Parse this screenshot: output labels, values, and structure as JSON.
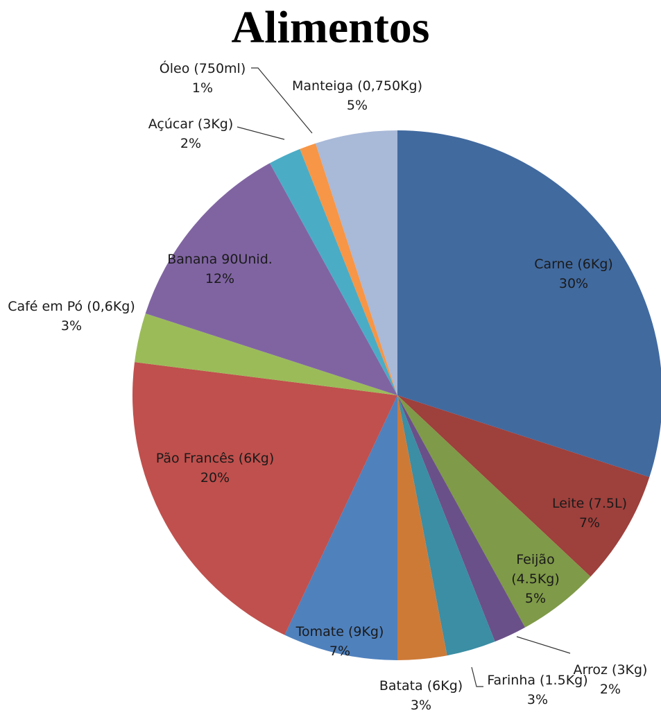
{
  "chart_data": {
    "type": "pie",
    "title": "Alimentos",
    "categories": [
      "Carne (6Kg)",
      "Leite (7.5L)",
      "Feijão (4.5Kg)",
      "Arroz (3Kg)",
      "Farinha (1.5Kg)",
      "Batata (6Kg)",
      "Tomate (9Kg)",
      "Pão Francês (6Kg)",
      "Café em Pó (0,6Kg)",
      "Banana 90Unid.",
      "Açúcar (3Kg)",
      "Óleo (750ml)",
      "Manteiga (0,750Kg)"
    ],
    "values": [
      30,
      7,
      5,
      2,
      3,
      3,
      7,
      20,
      3,
      12,
      2,
      1,
      5
    ],
    "value_labels": [
      "30%",
      "7%",
      "5%",
      "2%",
      "3%",
      "3%",
      "7%",
      "20%",
      "3%",
      "12%",
      "2%",
      "1%",
      "5%"
    ],
    "colors": [
      "#416a9f",
      "#9e403c",
      "#7f9a48",
      "#6a5088",
      "#3b8ea4",
      "#cd7a37",
      "#4f81bd",
      "#c0504d",
      "#9bbb59",
      "#8064a2",
      "#4bacc6",
      "#f79646",
      "#a9b9d8"
    ]
  }
}
